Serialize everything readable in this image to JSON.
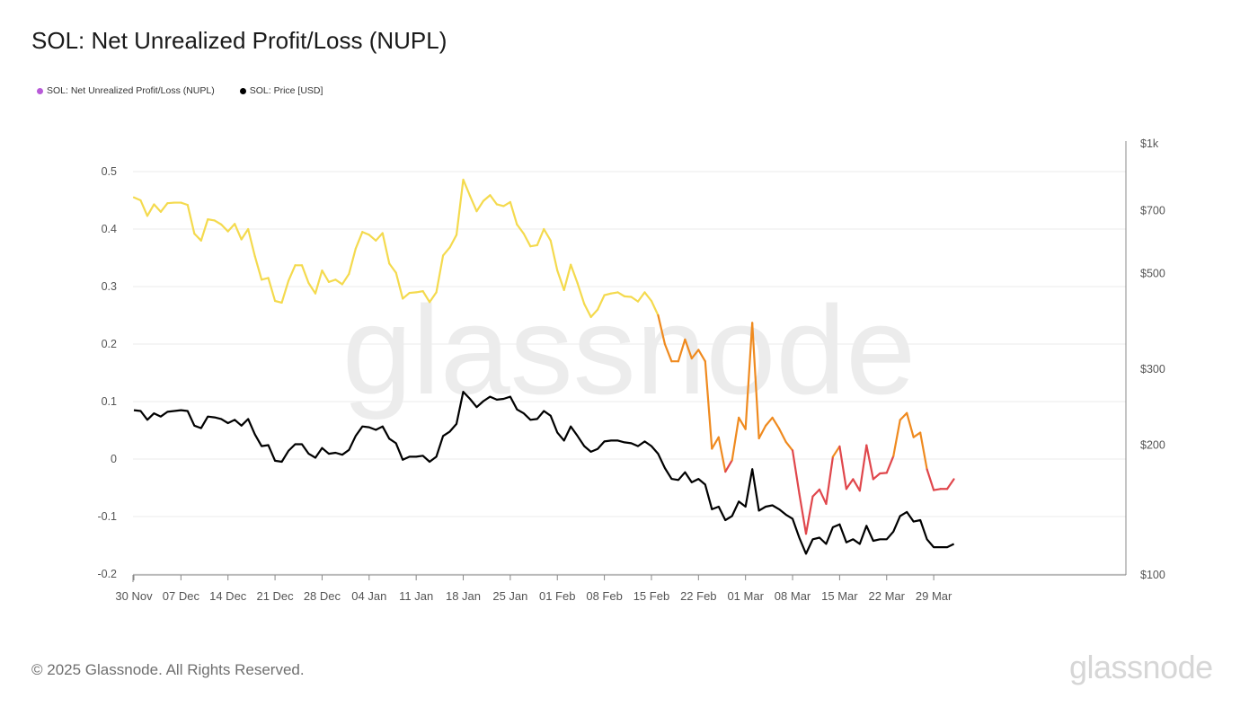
{
  "title": "SOL: Net Unrealized Profit/Loss (NUPL)",
  "legend": [
    {
      "label": "SOL: Net Unrealized Profit/Loss (NUPL)",
      "color": "#b85ad8"
    },
    {
      "label": "SOL: Price [USD]",
      "color": "#000000"
    }
  ],
  "watermark": "glassnode",
  "footer": {
    "copyright": "© 2025 Glassnode. All Rights Reserved.",
    "brand": "glassnode"
  },
  "colors": {
    "nupl_high": "#f4da4e",
    "nupl_mid": "#ef8a1f",
    "nupl_low": "#e0474c",
    "price": "#000000",
    "grid": "#ebebeb"
  },
  "chart_data": {
    "type": "line",
    "x_start": "2024-11-30",
    "x_step_days": 1,
    "x_ticks": [
      "30 Nov",
      "07 Dec",
      "14 Dec",
      "21 Dec",
      "28 Dec",
      "04 Jan",
      "11 Jan",
      "18 Jan",
      "25 Jan",
      "01 Feb",
      "08 Feb",
      "15 Feb",
      "22 Feb",
      "01 Mar",
      "08 Mar",
      "15 Mar",
      "22 Mar",
      "29 Mar"
    ],
    "y_left": {
      "ticks": [
        0.5,
        0.4,
        0.3,
        0.2,
        0.1,
        0,
        -0.1,
        -0.2
      ],
      "tick_labels": [
        "0.5",
        "0.4",
        "0.3",
        "0.2",
        "0.1",
        "0",
        "-0.1",
        "-0.2"
      ],
      "ylim": [
        -0.2,
        0.5
      ]
    },
    "y_right": {
      "scale": "log",
      "ticks": [
        1000,
        700,
        500,
        300,
        200,
        100
      ],
      "tick_labels": [
        "$1k",
        "$700",
        "$500",
        "$300",
        "$200",
        "$100"
      ],
      "ylim": [
        100,
        1000
      ]
    },
    "grid": true,
    "legend_position": "top-left",
    "series": [
      {
        "name": "SOL: Net Unrealized Profit/Loss (NUPL)",
        "axis": "left",
        "values": [
          0.455,
          0.45,
          0.423,
          0.443,
          0.43,
          0.445,
          0.446,
          0.446,
          0.442,
          0.392,
          0.38,
          0.417,
          0.415,
          0.408,
          0.396,
          0.409,
          0.382,
          0.4,
          0.353,
          0.312,
          0.315,
          0.275,
          0.272,
          0.31,
          0.337,
          0.337,
          0.306,
          0.288,
          0.328,
          0.308,
          0.312,
          0.304,
          0.322,
          0.366,
          0.395,
          0.39,
          0.38,
          0.393,
          0.34,
          0.324,
          0.279,
          0.289,
          0.29,
          0.292,
          0.273,
          0.29,
          0.354,
          0.368,
          0.39,
          0.486,
          0.458,
          0.431,
          0.449,
          0.459,
          0.443,
          0.44,
          0.447,
          0.408,
          0.392,
          0.37,
          0.372,
          0.4,
          0.38,
          0.328,
          0.294,
          0.338,
          0.306,
          0.27,
          0.247,
          0.26,
          0.285,
          0.288,
          0.29,
          0.283,
          0.282,
          0.274,
          0.29,
          0.275,
          0.25,
          0.2,
          0.17,
          0.17,
          0.208,
          0.175,
          0.19,
          0.17,
          0.018,
          0.038,
          -0.022,
          -0.002,
          0.072,
          0.052,
          0.237,
          0.036,
          0.058,
          0.072,
          0.053,
          0.03,
          0.015,
          -0.06,
          -0.13,
          -0.065,
          -0.053,
          -0.078,
          0.004,
          0.022,
          -0.052,
          -0.035,
          -0.055,
          0.024,
          -0.035,
          -0.025,
          -0.024,
          0.005,
          0.068,
          0.08,
          0.038,
          0.046,
          -0.018,
          -0.054,
          -0.052,
          -0.052,
          -0.035
        ]
      },
      {
        "name": "SOL: Price [USD]",
        "axis": "right",
        "values": [
          241,
          240,
          229,
          237,
          233,
          239,
          240,
          241,
          240,
          222,
          219,
          233,
          232,
          230,
          225,
          229,
          222,
          230,
          212,
          199,
          200,
          184,
          183,
          194,
          201,
          201,
          191,
          187,
          197,
          191,
          192,
          190,
          195,
          210,
          221,
          220,
          217,
          221,
          207,
          202,
          185,
          188,
          188,
          189,
          183,
          188,
          210,
          215,
          224,
          266,
          256,
          245,
          253,
          259,
          255,
          256,
          259,
          242,
          237,
          229,
          230,
          240,
          234,
          214,
          205,
          221,
          210,
          199,
          193,
          196,
          204,
          205,
          205,
          203,
          202,
          199,
          204,
          199,
          191,
          177,
          167,
          166,
          173,
          164,
          167,
          162,
          142,
          144,
          134,
          137,
          148,
          144,
          176,
          141,
          144,
          145,
          142,
          138,
          135,
          122,
          112,
          121,
          122,
          118,
          129,
          131,
          119,
          121,
          118,
          130,
          120,
          121,
          121,
          126,
          137,
          140,
          133,
          134,
          121,
          116,
          116,
          116,
          118
        ]
      }
    ]
  }
}
